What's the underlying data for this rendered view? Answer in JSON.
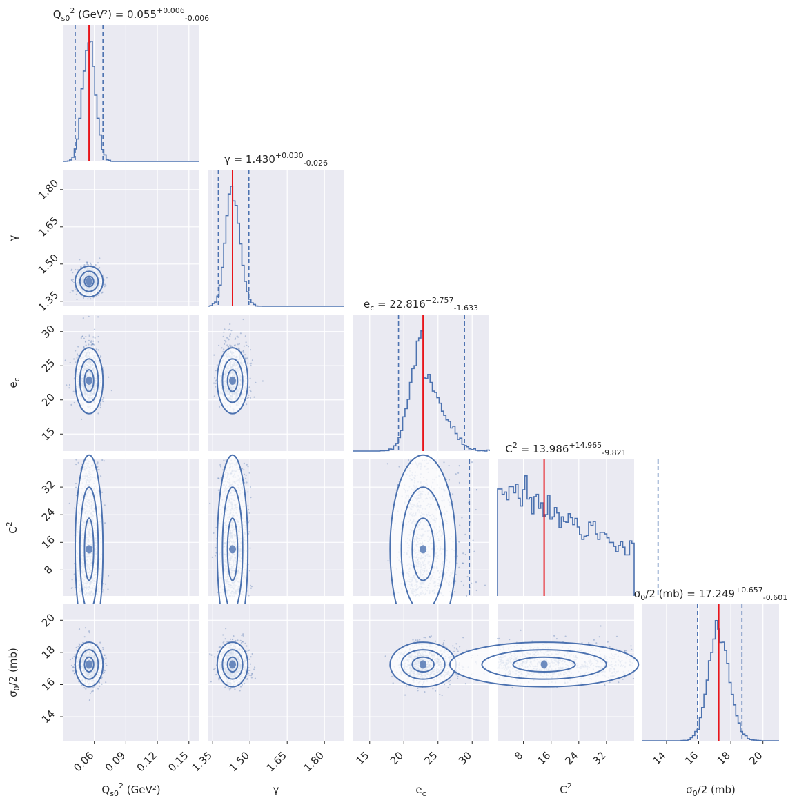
{
  "chart_data": {
    "type": "corner",
    "grid": true,
    "truth_color": "#e8151b",
    "line_color": "#4c72b0",
    "panel_bg": "#eaeaf2",
    "parameters": [
      {
        "label": "Q_{s0}^2 (GeV²)",
        "range": [
          0.03,
          0.16
        ],
        "ticks": [
          0.06,
          0.09,
          0.12,
          0.15
        ],
        "tick_labels": [
          "0.06",
          "0.09",
          "0.12",
          "0.15"
        ],
        "median": 0.055,
        "plus": 0.006,
        "minus": 0.006,
        "title": "Q_{s0}^2 (GeV²) = 0.055^{+0.006}_{-0.006}"
      },
      {
        "label": "γ",
        "range": [
          1.33,
          1.88
        ],
        "ticks": [
          1.35,
          1.5,
          1.65,
          1.8
        ],
        "tick_labels": [
          "1.35",
          "1.50",
          "1.65",
          "1.80"
        ],
        "median": 1.43,
        "plus": 0.03,
        "minus": 0.026,
        "title": "γ = 1.430^{+0.030}_{-0.026}"
      },
      {
        "label": "e_c",
        "range": [
          12.5,
          32.5
        ],
        "ticks": [
          15,
          20,
          25,
          30
        ],
        "tick_labels": [
          "15",
          "20",
          "25",
          "30"
        ],
        "median": 22.816,
        "plus": 2.757,
        "minus": 1.633,
        "title": "e_c = 22.816^{+2.757}_{-1.633}"
      },
      {
        "label": "C^2",
        "range": [
          0.5,
          40
        ],
        "ticks": [
          8,
          16,
          24,
          32
        ],
        "tick_labels": [
          "8",
          "16",
          "24",
          "32"
        ],
        "median": 13.986,
        "plus": 14.965,
        "minus": 9.821,
        "title": "C^2 = 13.986^{+14.965}_{-9.821}"
      },
      {
        "label": "σ_0/2 (mb)",
        "range": [
          12.5,
          21
        ],
        "ticks": [
          14,
          16,
          18,
          20
        ],
        "tick_labels": [
          "14",
          "16",
          "18",
          "20"
        ],
        "median": 17.249,
        "plus": 0.657,
        "minus": 0.601,
        "title": "σ_0/2 (mb) = 17.249^{+0.657}_{-0.601}"
      }
    ]
  }
}
